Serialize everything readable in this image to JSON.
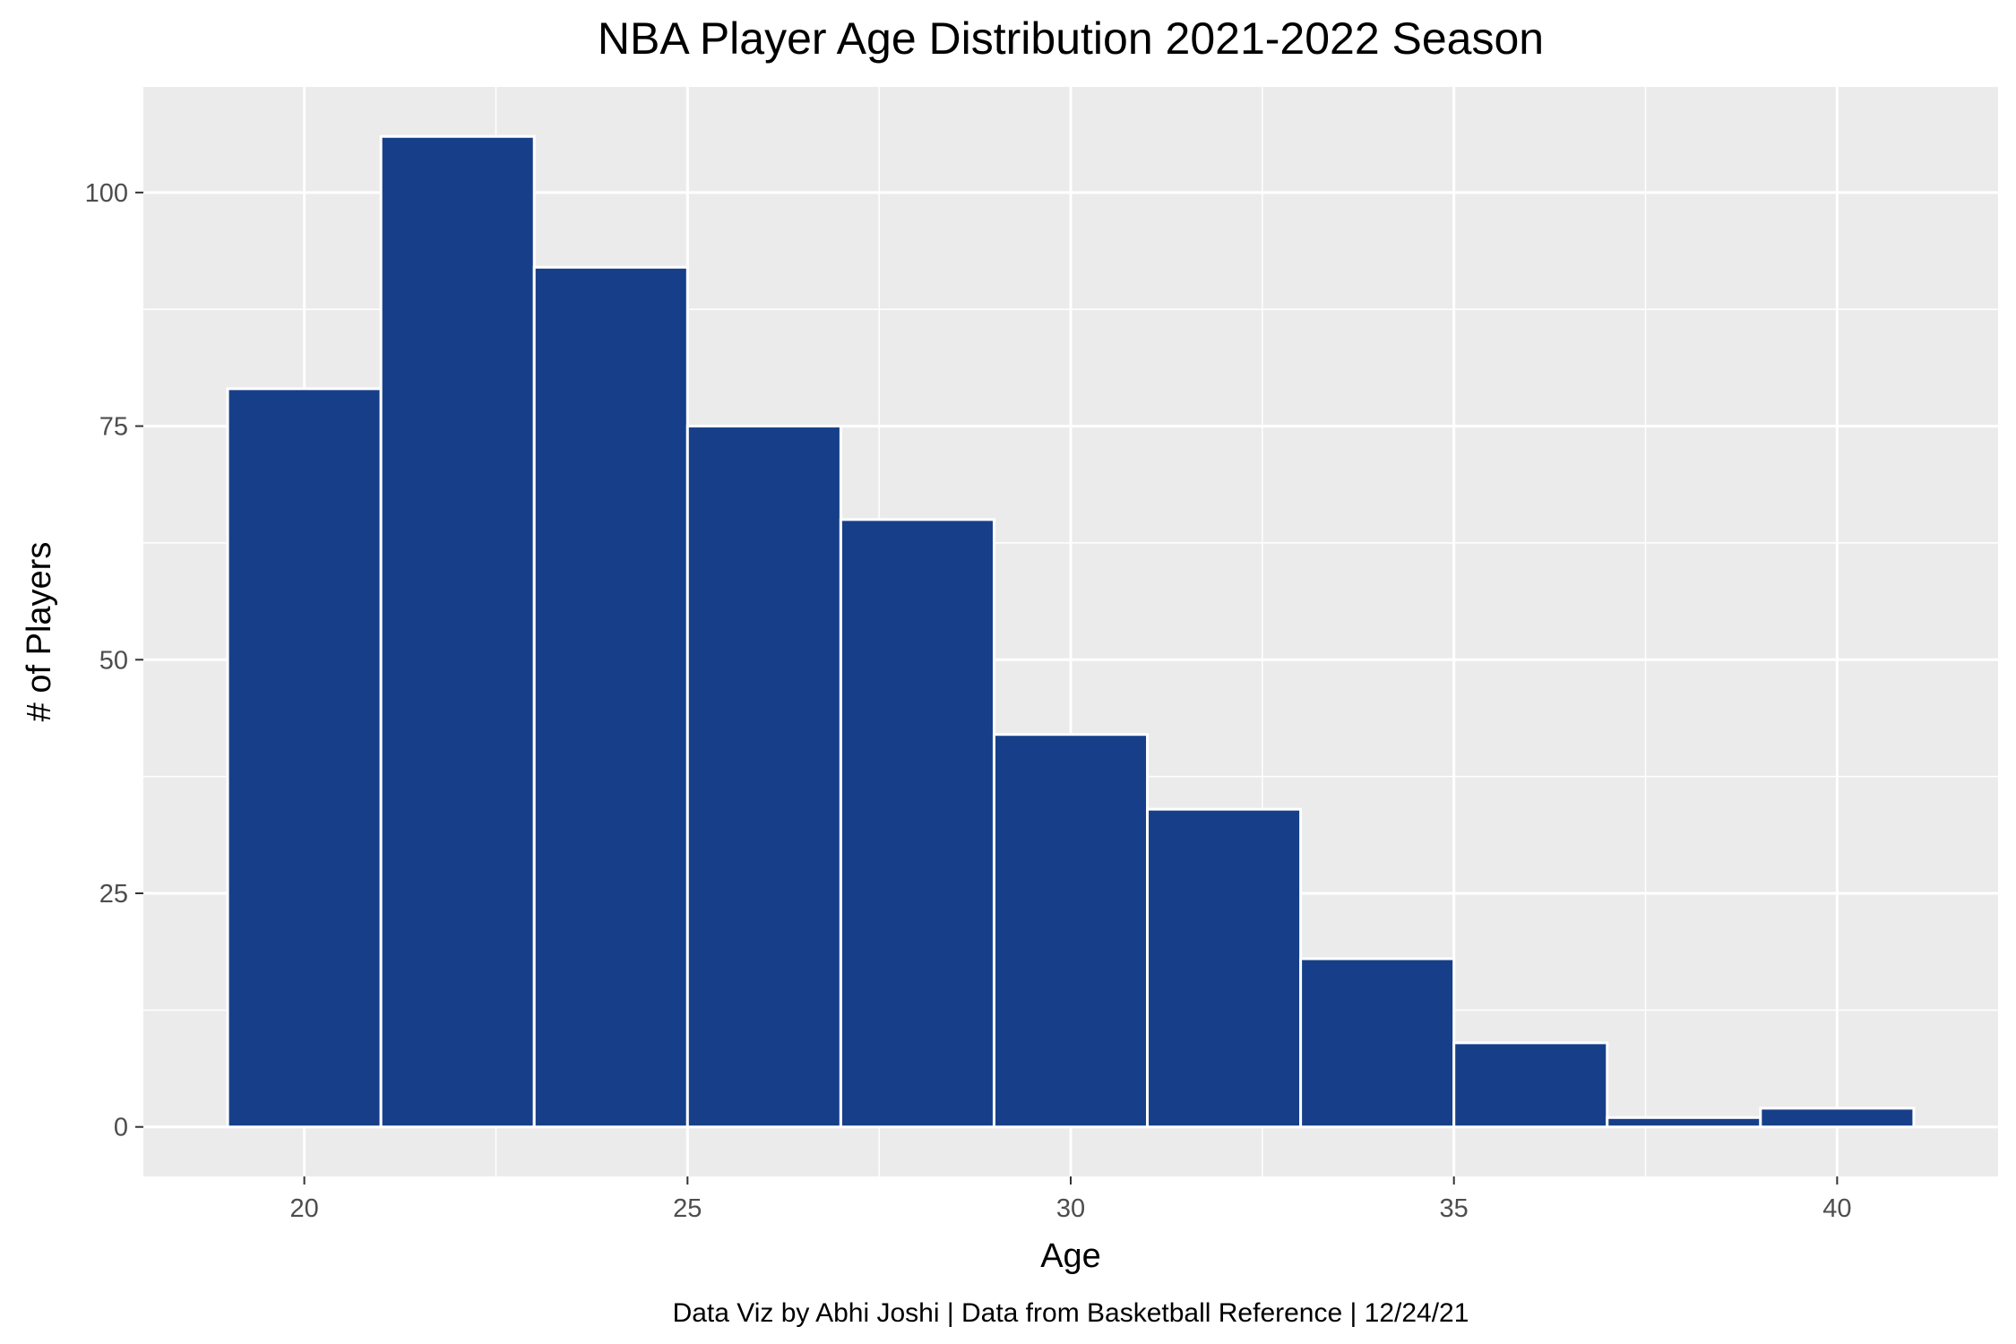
{
  "chart_data": {
    "type": "bar",
    "title": "NBA Player Age Distribution 2021-2022 Season",
    "xlabel": "Age",
    "ylabel": "# of Players",
    "caption": "Data Viz by Abhi Joshi | Data from Basketball Reference | 12/24/21",
    "bins": [
      {
        "x0": 19,
        "x1": 21,
        "count": 79
      },
      {
        "x0": 21,
        "x1": 23,
        "count": 106
      },
      {
        "x0": 23,
        "x1": 25,
        "count": 92
      },
      {
        "x0": 25,
        "x1": 27,
        "count": 75
      },
      {
        "x0": 27,
        "x1": 29,
        "count": 65
      },
      {
        "x0": 29,
        "x1": 31,
        "count": 42
      },
      {
        "x0": 31,
        "x1": 33,
        "count": 34
      },
      {
        "x0": 33,
        "x1": 35,
        "count": 18
      },
      {
        "x0": 35,
        "x1": 37,
        "count": 9
      },
      {
        "x0": 37,
        "x1": 39,
        "count": 1
      },
      {
        "x0": 39,
        "x1": 41,
        "count": 2
      }
    ],
    "xlim": [
      17.9,
      42.1
    ],
    "ylim": [
      -5.3,
      111.3
    ],
    "x_ticks": [
      20,
      25,
      30,
      35,
      40
    ],
    "x_minor_ticks": [
      22.5,
      27.5,
      32.5,
      37.5
    ],
    "y_ticks": [
      0,
      25,
      50,
      75,
      100
    ],
    "y_minor_ticks": [
      12.5,
      37.5,
      62.5,
      87.5
    ],
    "grid": true,
    "legend": "none",
    "colors": {
      "bar_fill": "#173F89",
      "bar_outline": "#FFFFFF",
      "panel_background": "#EBEBEB",
      "grid": "#FFFFFF"
    }
  }
}
